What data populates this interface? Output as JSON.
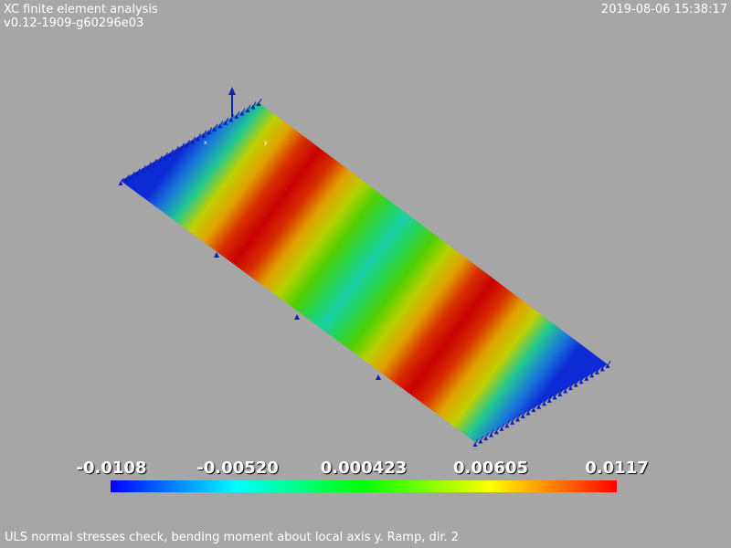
{
  "header": {
    "app_title": "XC finite element analysis",
    "version": "v0.12-1909-g60296e03",
    "timestamp": "2019-08-06 15:38:17"
  },
  "plot": {
    "axis_labels": {
      "x": "x",
      "y": "y"
    },
    "colormap": [
      "#0000ff",
      "#00ffff",
      "#00ff00",
      "#ffff00",
      "#ff0000"
    ],
    "band_colors": [
      "#0c2bd6",
      "#1a7cd8",
      "#22c88f",
      "#c0d000",
      "#e0a000",
      "#d83000",
      "#c80000",
      "#d83000",
      "#e0a000",
      "#b8d000",
      "#52d000",
      "#28d450",
      "#1ad0a8",
      "#28d450",
      "#52d000",
      "#b8d000",
      "#e0a000",
      "#d83000",
      "#c80000",
      "#d83000",
      "#e0a000",
      "#c0d000",
      "#22c88f",
      "#1a7cd8",
      "#0c2bd6"
    ]
  },
  "colorbar": {
    "tick_labels": [
      "-0.0108",
      "-0.00520",
      "0.000423",
      "0.00605",
      "0.0117"
    ],
    "tick_values": [
      -0.0108,
      -0.0052,
      0.000423,
      0.00605,
      0.0117
    ],
    "range": [
      -0.0108,
      0.0117
    ]
  },
  "caption": "ULS normal stresses check, bending moment about local axis y. Ramp, dir. 2"
}
